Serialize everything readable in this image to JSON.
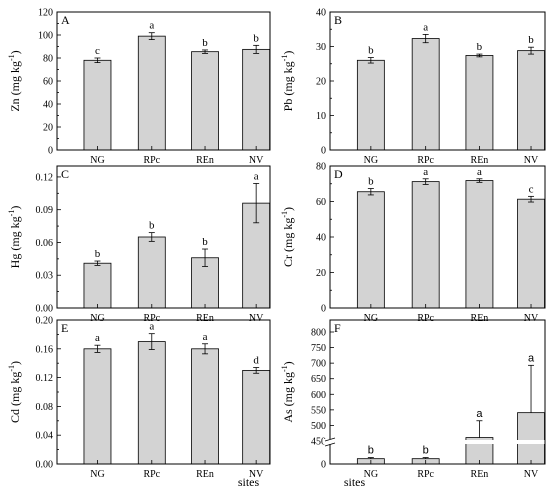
{
  "chart_data": [
    {
      "panel": "A",
      "type": "bar",
      "ylabel": "Zn (mg kg-1)",
      "ylabel_main": "Zn (mg kg",
      "ylabel_sup": "-1",
      "ylabel_close": ")",
      "ylim": [
        0,
        120
      ],
      "yticks": [
        0,
        20,
        40,
        60,
        80,
        100,
        120
      ],
      "categories": [
        "NG",
        "RPc",
        "REn",
        "NV"
      ],
      "values": [
        78,
        99,
        85.5,
        87.5
      ],
      "errors": [
        2,
        3,
        1.5,
        3.5
      ],
      "significance": [
        "c",
        "a",
        "b",
        "b"
      ],
      "xlabel": ""
    },
    {
      "panel": "B",
      "type": "bar",
      "ylabel": "Pb (mg kg-1)",
      "ylabel_main": "Pb (mg kg",
      "ylabel_sup": "-1",
      "ylabel_close": ")",
      "ylim": [
        0,
        40
      ],
      "yticks": [
        0,
        10,
        20,
        30,
        40
      ],
      "categories": [
        "NG",
        "RPc",
        "REn",
        "NV"
      ],
      "values": [
        26,
        32.3,
        27.4,
        28.8
      ],
      "errors": [
        0.8,
        1.2,
        0.4,
        1.0
      ],
      "significance": [
        "b",
        "a",
        "b",
        "b"
      ],
      "xlabel": ""
    },
    {
      "panel": "C",
      "type": "bar",
      "ylabel": "Hg (mg kg-1)",
      "ylabel_main": "Hg (mg kg",
      "ylabel_sup": "-1",
      "ylabel_close": ")",
      "ylim": [
        0,
        0.13
      ],
      "yticks": [
        "0.00",
        "0.03",
        "0.06",
        "0.09",
        "0.12"
      ],
      "ytick_values": [
        0,
        0.03,
        0.06,
        0.09,
        0.12
      ],
      "categories": [
        "NG",
        "RPc",
        "REn",
        "NV"
      ],
      "values": [
        0.041,
        0.065,
        0.046,
        0.096
      ],
      "errors": [
        0.002,
        0.004,
        0.008,
        0.018
      ],
      "significance": [
        "b",
        "b",
        "b",
        "a"
      ],
      "xlabel": ""
    },
    {
      "panel": "D",
      "type": "bar",
      "ylabel": "Cr (mg kg-1)",
      "ylabel_main": "Cr (mg kg",
      "ylabel_sup": "-1",
      "ylabel_close": ")",
      "ylim": [
        0,
        80
      ],
      "yticks": [
        0,
        20,
        40,
        60,
        80
      ],
      "categories": [
        "NG",
        "RPc",
        "REn",
        "NV"
      ],
      "values": [
        65.5,
        71.2,
        71.8,
        61.3
      ],
      "errors": [
        1.8,
        1.6,
        1.0,
        1.6
      ],
      "significance": [
        "b",
        "a",
        "a",
        "c"
      ],
      "xlabel": ""
    },
    {
      "panel": "E",
      "type": "bar",
      "ylabel": "Cd (mg kg-1)",
      "ylabel_main": "Cd (mg kg",
      "ylabel_sup": "-1",
      "ylabel_close": ")",
      "ylim": [
        0,
        0.2
      ],
      "yticks": [
        "0.00",
        "0.04",
        "0.08",
        "0.12",
        "0.16",
        "0.20"
      ],
      "ytick_values": [
        0,
        0.04,
        0.08,
        0.12,
        0.16,
        0.2
      ],
      "categories": [
        "NG",
        "RPc",
        "REn",
        "NV"
      ],
      "values": [
        0.16,
        0.17,
        0.16,
        0.13
      ],
      "errors": [
        0.005,
        0.011,
        0.007,
        0.004
      ],
      "significance": [
        "a",
        "a",
        "a",
        "d"
      ],
      "xlabel": "sites"
    },
    {
      "panel": "F",
      "type": "bar",
      "ylabel": "As (mg kg-1)",
      "ylabel_main": "As (mg kg",
      "ylabel_sup": "-1",
      "ylabel_close": ")",
      "y_axis_break": true,
      "ylim_lower": [
        0,
        50
      ],
      "ylim_upper": [
        450,
        800
      ],
      "yticks": [
        0,
        450,
        500,
        550,
        600,
        650,
        700,
        750,
        800
      ],
      "categories": [
        "NG",
        "RPc",
        "REn",
        "NV"
      ],
      "values": [
        14,
        14,
        461,
        541
      ],
      "errors": [
        3,
        3,
        54,
        152
      ],
      "significance": [
        "b",
        "b",
        "a",
        "a"
      ],
      "xlabel": "sites"
    }
  ]
}
